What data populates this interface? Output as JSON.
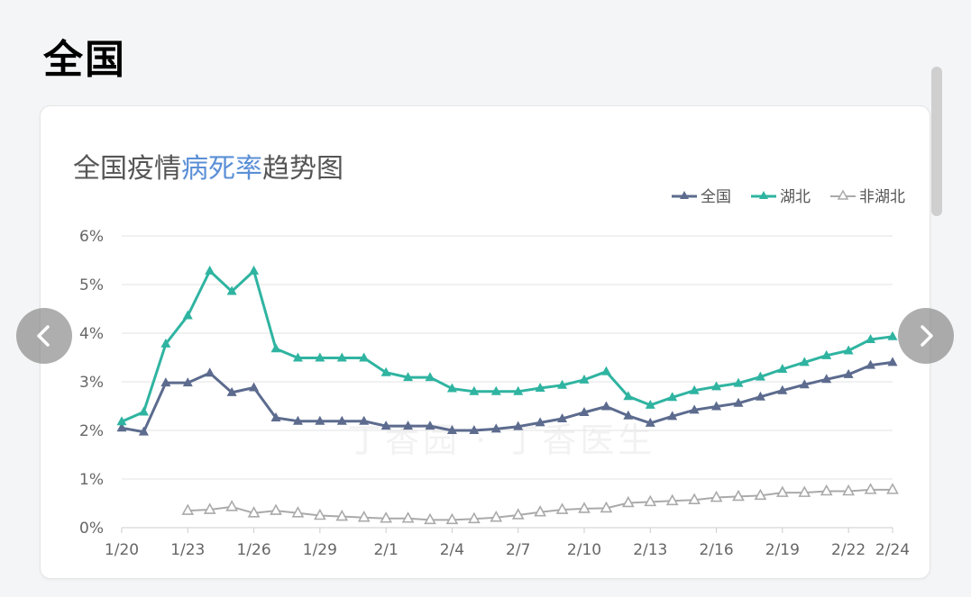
{
  "section": {
    "title": "全国"
  },
  "chart_title": {
    "part1": "全国疫情",
    "highlight": "病死率",
    "part2": "趋势图"
  },
  "watermark": "丁香园 · 丁香医生",
  "colors": {
    "national": "#5c6b8e",
    "hubei": "#2fb4a1",
    "non_hubei": "#aaaaaa",
    "highlight": "#5b8fd6"
  },
  "icons": {
    "prev": "chevron-left-icon",
    "next": "chevron-right-icon"
  },
  "chart_data": {
    "type": "line",
    "title": "全国疫情病死率趋势图",
    "x": [
      "1/20",
      "1/21",
      "1/22",
      "1/23",
      "1/24",
      "1/25",
      "1/26",
      "1/27",
      "1/28",
      "1/29",
      "1/30",
      "1/31",
      "2/1",
      "2/2",
      "2/3",
      "2/4",
      "2/5",
      "2/6",
      "2/7",
      "2/8",
      "2/9",
      "2/10",
      "2/11",
      "2/12",
      "2/13",
      "2/14",
      "2/15",
      "2/16",
      "2/17",
      "2/18",
      "2/19",
      "2/20",
      "2/21",
      "2/22",
      "2/23",
      "2/24"
    ],
    "tick_labels": [
      "1/20",
      "1/23",
      "1/26",
      "1/29",
      "2/1",
      "2/4",
      "2/7",
      "2/10",
      "2/13",
      "2/16",
      "2/19",
      "2/22",
      "2/24"
    ],
    "y_ticks": [
      "0%",
      "1%",
      "2%",
      "3%",
      "4%",
      "5%",
      "6%"
    ],
    "ylim": [
      0,
      6
    ],
    "grid": true,
    "legend_position": "top-right",
    "series": [
      {
        "name": "全国",
        "marker": "filled-triangle",
        "values": [
          2.05,
          1.97,
          2.98,
          2.98,
          3.18,
          2.78,
          2.88,
          2.26,
          2.19,
          2.19,
          2.19,
          2.19,
          2.09,
          2.09,
          2.09,
          2.0,
          2.0,
          2.03,
          2.08,
          2.16,
          2.24,
          2.37,
          2.49,
          2.3,
          2.15,
          2.29,
          2.42,
          2.49,
          2.56,
          2.69,
          2.82,
          2.94,
          3.05,
          3.15,
          3.34,
          3.4
        ]
      },
      {
        "name": "湖北",
        "marker": "filled-triangle",
        "values": [
          2.18,
          2.38,
          3.78,
          4.36,
          5.28,
          4.86,
          5.28,
          3.68,
          3.49,
          3.49,
          3.49,
          3.49,
          3.19,
          3.09,
          3.09,
          2.86,
          2.8,
          2.8,
          2.8,
          2.87,
          2.93,
          3.04,
          3.21,
          2.7,
          2.52,
          2.68,
          2.82,
          2.9,
          2.97,
          3.1,
          3.26,
          3.4,
          3.54,
          3.64,
          3.87,
          3.93
        ]
      },
      {
        "name": "非湖北",
        "marker": "hollow-triangle",
        "values": [
          null,
          null,
          null,
          0.35,
          0.37,
          0.43,
          0.3,
          0.35,
          0.3,
          0.25,
          0.23,
          0.21,
          0.19,
          0.19,
          0.16,
          0.16,
          0.18,
          0.21,
          0.26,
          0.32,
          0.37,
          0.39,
          0.4,
          0.51,
          0.53,
          0.55,
          0.57,
          0.62,
          0.64,
          0.66,
          0.72,
          0.72,
          0.75,
          0.75,
          0.78,
          0.78
        ]
      }
    ]
  }
}
